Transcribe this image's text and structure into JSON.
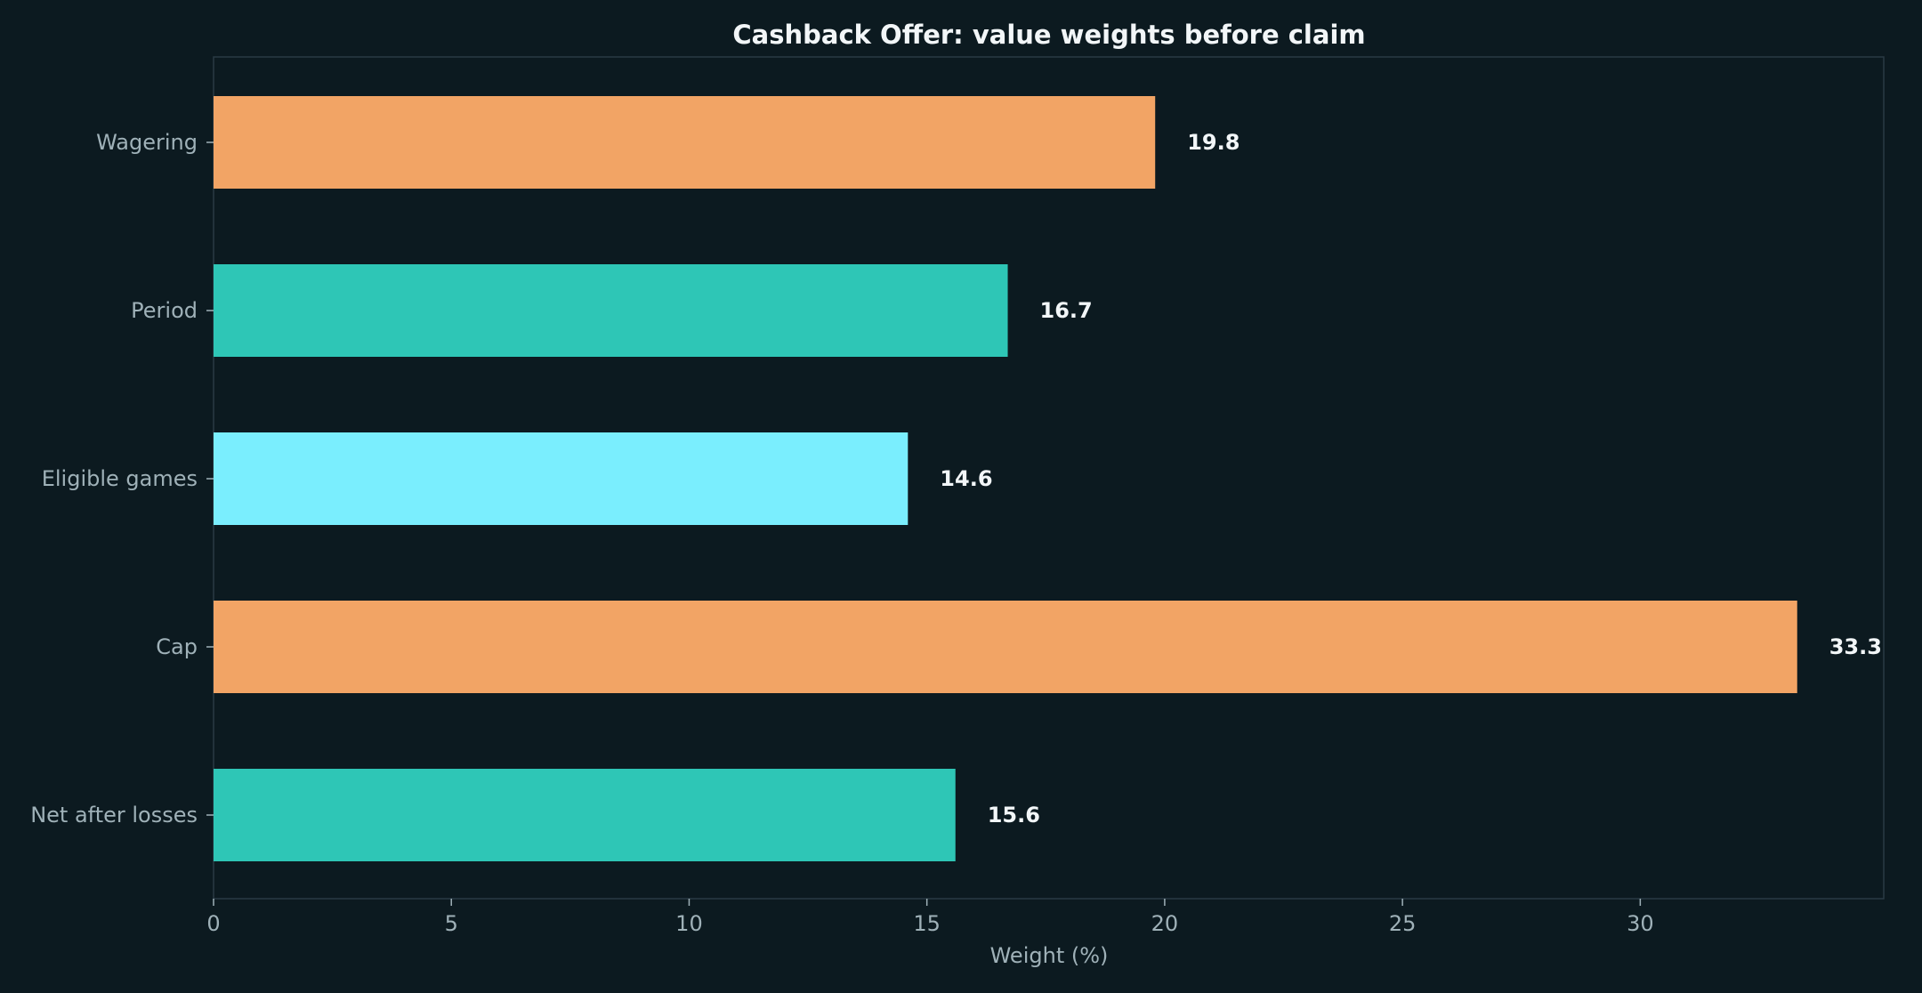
{
  "chart_data": {
    "type": "bar",
    "orientation": "horizontal",
    "title": "Cashback Offer: value weights before claim",
    "xlabel": "Weight (%)",
    "ylabel": "",
    "categories": [
      "Wagering",
      "Period",
      "Eligible games",
      "Cap",
      "Net after losses"
    ],
    "values": [
      19.8,
      16.7,
      14.6,
      33.3,
      15.6
    ],
    "value_labels": [
      "19.8",
      "16.7",
      "14.6",
      "33.3",
      "15.6"
    ],
    "bar_colors": [
      "#f2a465",
      "#2ec6b6",
      "#7aeefe",
      "#f2a465",
      "#2ec6b6"
    ],
    "xlim": [
      0,
      35
    ],
    "xticks": [
      0,
      5,
      10,
      15,
      20,
      25,
      30
    ],
    "xtick_labels": [
      "0",
      "5",
      "10",
      "15",
      "20",
      "25",
      "30"
    ],
    "grid": false,
    "legend": "none"
  },
  "colors": {
    "background": "#0c1a20",
    "axis": "#2a3a44",
    "text": "#f2f6f8",
    "muted_text": "#9fb1b8"
  }
}
